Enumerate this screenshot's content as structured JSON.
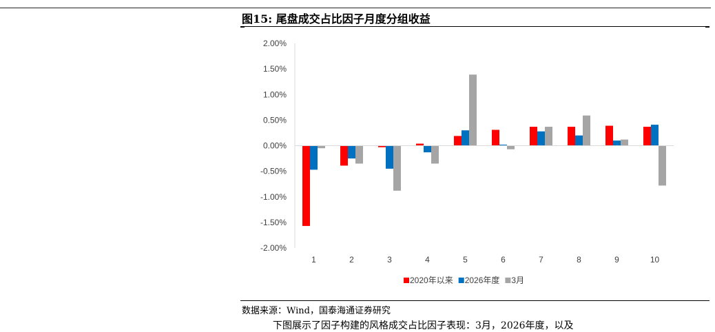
{
  "figure": {
    "title": "图15:  尾盘成交占比因子月度分组收益",
    "source": "数据来源：Wind，国泰海通证券研究",
    "body_text": "下图展示了因子构建的风格成交占比因子表现：3月，2026年度，以及"
  },
  "colors": {
    "series": [
      "#ff0000",
      "#0070c0",
      "#a5a5a5"
    ],
    "axis": "#d9d9d9",
    "text": "#404040"
  },
  "chart_data": {
    "type": "bar",
    "title": "",
    "xlabel": "",
    "ylabel": "",
    "categories": [
      "1",
      "2",
      "3",
      "4",
      "5",
      "6",
      "7",
      "8",
      "9",
      "10"
    ],
    "ylim": [
      -0.02,
      0.02
    ],
    "yticks": [
      "2.00%",
      "1.50%",
      "1.00%",
      "0.50%",
      "0.00%",
      "-0.50%",
      "-1.00%",
      "-1.50%",
      "-2.00%"
    ],
    "grid": false,
    "legend_position": "bottom",
    "series": [
      {
        "name": "2020年以来",
        "values": [
          -0.0157,
          -0.0039,
          -0.0003,
          0.0004,
          0.0019,
          0.0031,
          0.0037,
          0.0037,
          0.0039,
          0.0037
        ]
      },
      {
        "name": "2026年度",
        "values": [
          -0.0047,
          -0.0025,
          -0.0045,
          -0.0013,
          0.003,
          0.0002,
          0.0028,
          0.002,
          0.001,
          0.0041
        ]
      },
      {
        "name": "3月",
        "values": [
          -0.0005,
          -0.0035,
          -0.0088,
          -0.0035,
          0.0139,
          -0.0007,
          0.0037,
          0.0059,
          0.0012,
          -0.0078
        ]
      }
    ]
  }
}
